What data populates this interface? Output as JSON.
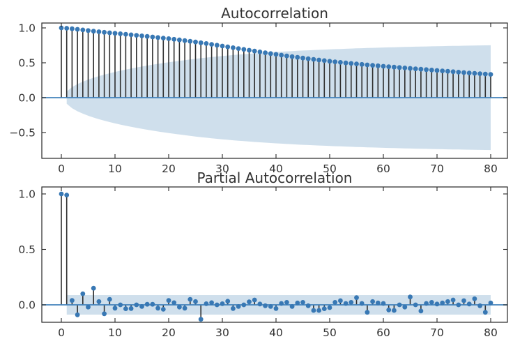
{
  "figure": {
    "background": "#ffffff"
  },
  "colors": {
    "marker": "#3878b4",
    "stem": "#2e2e2e",
    "zero_line": "#4383bc",
    "confidence_band": "#cfdfec",
    "spine": "#262626",
    "text": "#333333"
  },
  "chart_data": [
    {
      "type": "stem",
      "title": "Autocorrelation",
      "xlim": [
        -3.64,
        83.12
      ],
      "ylim": [
        -0.87,
        1.07
      ],
      "x_ticks": [
        0,
        10,
        20,
        30,
        40,
        50,
        60,
        70,
        80
      ],
      "x_tick_labels": [
        "0",
        "10",
        "20",
        "30",
        "40",
        "50",
        "60",
        "70",
        "80"
      ],
      "y_ticks": [
        1.0,
        0.5,
        0.0,
        -0.5
      ],
      "y_tick_labels": [
        "1.0",
        "0.5",
        "0.0",
        "−0.5"
      ],
      "grid": false,
      "legend": null,
      "lags_start": 0,
      "values": [
        1.0,
        0.995,
        0.988,
        0.98,
        0.971,
        0.962,
        0.953,
        0.945,
        0.937,
        0.93,
        0.923,
        0.916,
        0.909,
        0.901,
        0.894,
        0.886,
        0.878,
        0.87,
        0.862,
        0.854,
        0.846,
        0.837,
        0.828,
        0.818,
        0.808,
        0.798,
        0.787,
        0.776,
        0.764,
        0.752,
        0.74,
        0.728,
        0.716,
        0.704,
        0.692,
        0.68,
        0.668,
        0.656,
        0.644,
        0.632,
        0.621,
        0.61,
        0.599,
        0.588,
        0.578,
        0.568,
        0.558,
        0.549,
        0.54,
        0.531,
        0.522,
        0.514,
        0.506,
        0.498,
        0.491,
        0.484,
        0.477,
        0.47,
        0.463,
        0.457,
        0.45,
        0.444,
        0.438,
        0.432,
        0.426,
        0.42,
        0.414,
        0.408,
        0.402,
        0.396,
        0.39,
        0.384,
        0.378,
        0.372,
        0.366,
        0.36,
        0.354,
        0.349,
        0.344,
        0.339,
        0.334
      ],
      "ci_band": {
        "start_lag": 1,
        "symmetric_about": 0,
        "upper": [
          0.088,
          0.151,
          0.195,
          0.229,
          0.259,
          0.285,
          0.309,
          0.33,
          0.35,
          0.369,
          0.386,
          0.402,
          0.418,
          0.432,
          0.446,
          0.46,
          0.472,
          0.485,
          0.496,
          0.507,
          0.518,
          0.528,
          0.538,
          0.548,
          0.557,
          0.566,
          0.574,
          0.582,
          0.59,
          0.597,
          0.604,
          0.611,
          0.617,
          0.623,
          0.629,
          0.635,
          0.64,
          0.645,
          0.65,
          0.655,
          0.659,
          0.664,
          0.668,
          0.672,
          0.676,
          0.679,
          0.683,
          0.686,
          0.689,
          0.693,
          0.696,
          0.698,
          0.701,
          0.704,
          0.707,
          0.709,
          0.712,
          0.714,
          0.716,
          0.719,
          0.721,
          0.723,
          0.725,
          0.727,
          0.729,
          0.731,
          0.732,
          0.734,
          0.736,
          0.737,
          0.739,
          0.741,
          0.742,
          0.743,
          0.745,
          0.746,
          0.747,
          0.749,
          0.75,
          0.751
        ]
      }
    },
    {
      "type": "stem",
      "title": "Partial Autocorrelation",
      "xlim": [
        -3.64,
        83.12
      ],
      "ylim": [
        -0.157,
        1.063
      ],
      "x_ticks": [
        0,
        10,
        20,
        30,
        40,
        50,
        60,
        70,
        80
      ],
      "x_tick_labels": [
        "0",
        "10",
        "20",
        "30",
        "40",
        "50",
        "60",
        "70",
        "80"
      ],
      "y_ticks": [
        1.0,
        0.5,
        0.0
      ],
      "y_tick_labels": [
        "1.0",
        "0.5",
        "0.0"
      ],
      "grid": false,
      "legend": null,
      "lags_start": 0,
      "values": [
        1.0,
        0.99,
        0.04,
        -0.09,
        0.1,
        -0.02,
        0.15,
        0.03,
        -0.08,
        0.05,
        -0.03,
        0.0,
        -0.035,
        -0.033,
        0.0,
        -0.015,
        0.005,
        0.005,
        -0.03,
        -0.04,
        0.04,
        0.02,
        -0.02,
        -0.03,
        0.05,
        0.03,
        -0.13,
        0.01,
        0.02,
        0.0,
        0.01,
        0.033,
        -0.033,
        -0.015,
        0.0,
        0.027,
        0.044,
        0.008,
        -0.008,
        -0.015,
        -0.033,
        0.013,
        0.023,
        -0.015,
        0.017,
        0.023,
        -0.008,
        -0.05,
        -0.05,
        -0.035,
        -0.025,
        0.023,
        0.038,
        0.013,
        0.023,
        0.065,
        0.013,
        -0.067,
        0.03,
        0.017,
        0.013,
        -0.046,
        -0.05,
        0.0,
        -0.02,
        0.071,
        0.0,
        -0.055,
        0.013,
        0.023,
        0.008,
        0.017,
        0.03,
        0.044,
        0.0,
        0.038,
        0.008,
        0.055,
        -0.008,
        -0.067,
        0.017
      ],
      "ci_band": {
        "start_lag": 1,
        "symmetric_about": 0,
        "constant": 0.088
      }
    }
  ]
}
